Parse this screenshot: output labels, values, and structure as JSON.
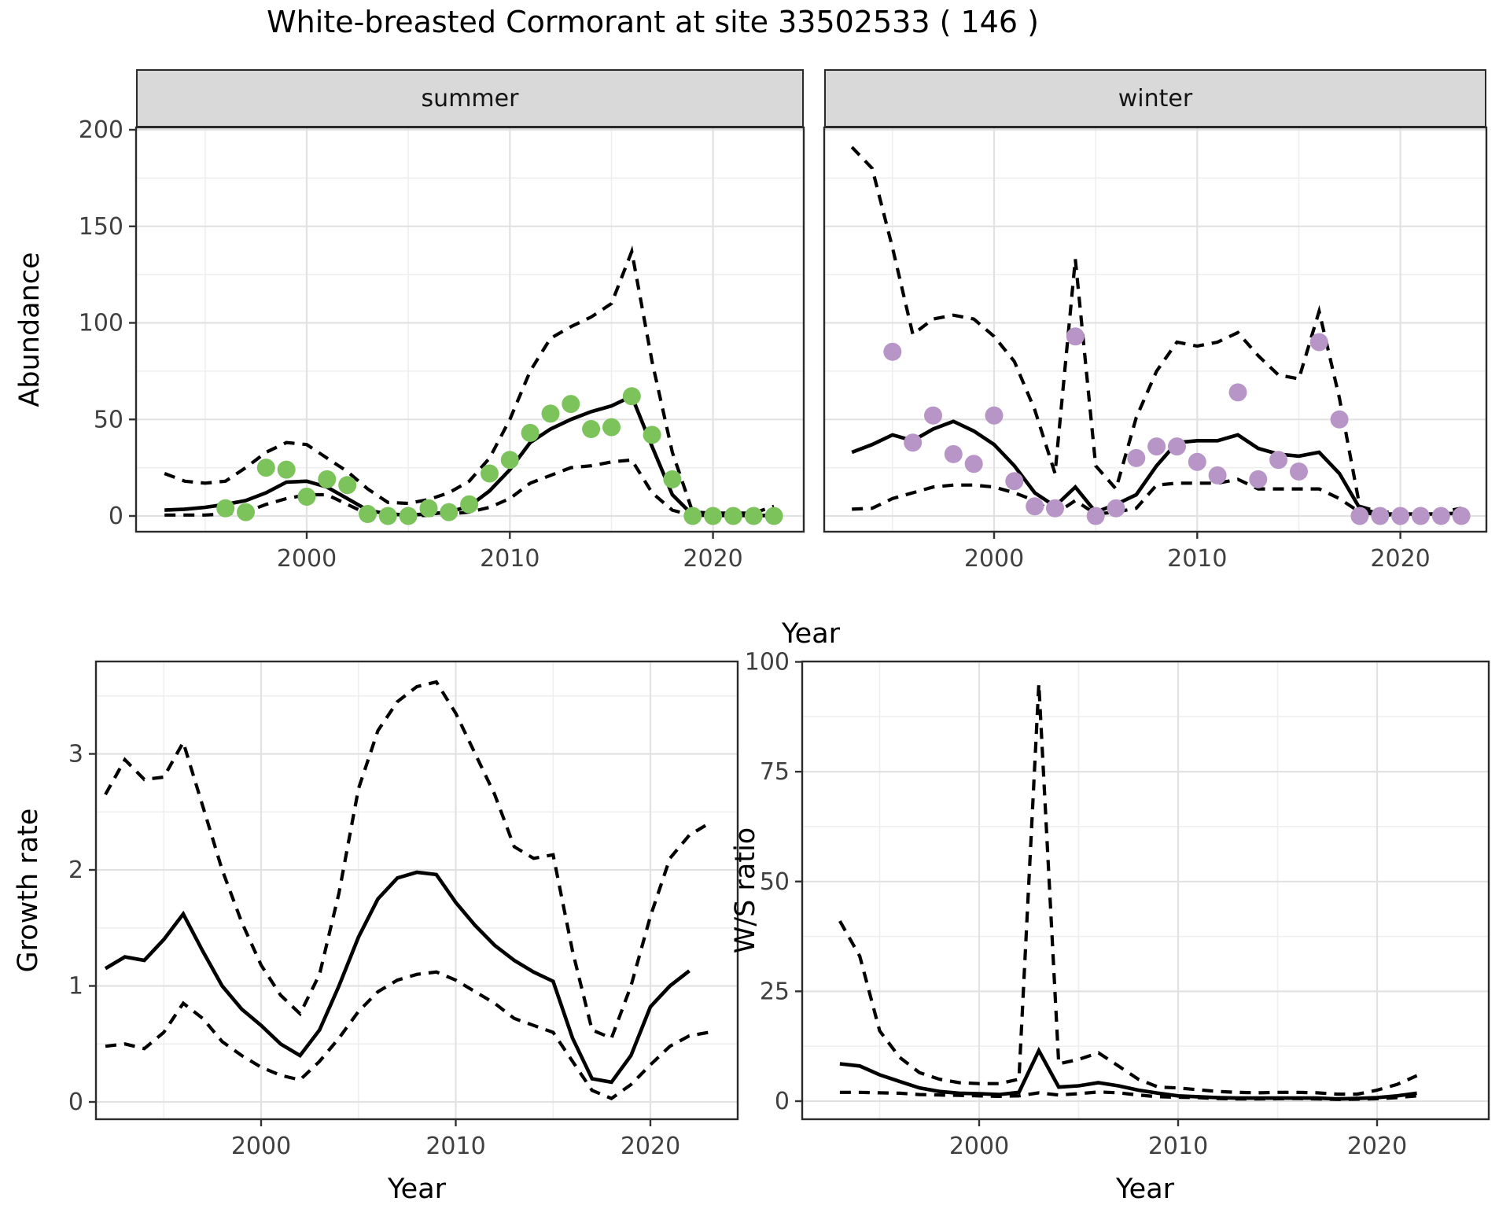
{
  "title": "White-breasted Cormorant at site 33502533 ( 146 )",
  "facets": [
    {
      "label": "summer"
    },
    {
      "label": "winter"
    }
  ],
  "axis_titles": {
    "abundance": "Abundance",
    "year": "Year",
    "growth_rate": "Growth rate",
    "ws_ratio": "W/S ratio"
  },
  "colors": {
    "summer_points": "#7CC35B",
    "winter_points": "#B795C7",
    "line": "#000000",
    "strip_bg": "#D9D9D9",
    "grid_major": "#E2E2E2",
    "grid_minor": "#EEEEEE",
    "panel_border": "#2B2B2B",
    "tick_text": "#404040"
  },
  "chart_data": [
    {
      "id": "abundance-summer",
      "type": "line",
      "facet": "summer",
      "xlabel": "Year",
      "ylabel": "Abundance",
      "ylim": [
        0,
        200
      ],
      "xticks": [
        2000,
        2010,
        2020
      ],
      "xticks_minor": [
        1995,
        2005,
        2015
      ],
      "yticks": [
        0,
        50,
        100,
        150,
        200
      ],
      "yticks_minor": [
        25,
        75,
        125,
        175
      ],
      "show_y_axis": true,
      "years": [
        1993,
        1994,
        1995,
        1996,
        1997,
        1998,
        1999,
        2000,
        2001,
        2002,
        2003,
        2004,
        2005,
        2006,
        2007,
        2008,
        2009,
        2010,
        2011,
        2012,
        2013,
        2014,
        2015,
        2016,
        2017,
        2018,
        2019,
        2020,
        2021,
        2022,
        2023
      ],
      "series": [
        {
          "name": "mean",
          "linetype": "solid",
          "values": [
            3,
            3.5,
            4.5,
            6,
            8,
            12,
            17.5,
            18,
            15,
            9,
            3,
            1,
            0.5,
            1,
            2,
            5,
            13,
            24,
            38,
            45,
            50,
            54,
            57,
            62,
            36,
            11,
            0.5,
            0.3,
            0.3,
            0.3,
            0.3
          ]
        },
        {
          "name": "upper_ci",
          "linetype": "dashed",
          "values": [
            22,
            18,
            17,
            18,
            25,
            33,
            38,
            37,
            30,
            23,
            14,
            7,
            6.5,
            8.5,
            12,
            18,
            30,
            50,
            75,
            92,
            98,
            103,
            110,
            137,
            80,
            33,
            2,
            1.5,
            1.5,
            1.5,
            5
          ]
        },
        {
          "name": "lower_ci",
          "linetype": "dashed",
          "values": [
            0.5,
            0.5,
            0.5,
            1,
            2,
            6,
            9,
            11,
            11,
            6,
            1,
            0.3,
            0.2,
            0.3,
            1,
            2,
            4.5,
            9,
            17,
            21,
            25,
            26,
            28,
            29,
            12,
            3,
            0.2,
            0.2,
            0.2,
            0.2,
            0.2
          ]
        }
      ],
      "points": {
        "color": "#7CC35B",
        "data": [
          [
            1996,
            4
          ],
          [
            1997,
            2
          ],
          [
            1998,
            25
          ],
          [
            1999,
            24
          ],
          [
            2000,
            10
          ],
          [
            2001,
            19
          ],
          [
            2002,
            16
          ],
          [
            2003,
            1
          ],
          [
            2004,
            0
          ],
          [
            2005,
            0
          ],
          [
            2006,
            4
          ],
          [
            2007,
            2
          ],
          [
            2008,
            6
          ],
          [
            2009,
            22
          ],
          [
            2010,
            29
          ],
          [
            2011,
            43
          ],
          [
            2012,
            53
          ],
          [
            2013,
            58
          ],
          [
            2014,
            45
          ],
          [
            2015,
            46
          ],
          [
            2016,
            62
          ],
          [
            2017,
            42
          ],
          [
            2018,
            19
          ],
          [
            2019,
            0
          ],
          [
            2020,
            0
          ],
          [
            2021,
            0
          ],
          [
            2022,
            0
          ],
          [
            2023,
            0
          ]
        ]
      }
    },
    {
      "id": "abundance-winter",
      "type": "line",
      "facet": "winter",
      "xlabel": "Year",
      "ylabel": "Abundance",
      "ylim": [
        0,
        200
      ],
      "xticks": [
        2000,
        2010,
        2020
      ],
      "xticks_minor": [
        1995,
        2005,
        2015
      ],
      "yticks": [
        0,
        50,
        100,
        150,
        200
      ],
      "yticks_minor": [
        25,
        75,
        125,
        175
      ],
      "show_y_axis": false,
      "years": [
        1993,
        1994,
        1995,
        1996,
        1997,
        1998,
        1999,
        2000,
        2001,
        2002,
        2003,
        2004,
        2005,
        2006,
        2007,
        2008,
        2009,
        2010,
        2011,
        2012,
        2013,
        2014,
        2015,
        2016,
        2017,
        2018,
        2019,
        2020,
        2021,
        2022,
        2023
      ],
      "series": [
        {
          "name": "mean",
          "linetype": "solid",
          "values": [
            33,
            37,
            42,
            39,
            45,
            49,
            44,
            37,
            26,
            12,
            5,
            15,
            2,
            6,
            11,
            26,
            38,
            39,
            39,
            42,
            35,
            32,
            31,
            33,
            22,
            4,
            1,
            1,
            1,
            1,
            1.5
          ]
        },
        {
          "name": "upper_ci",
          "linetype": "dashed",
          "values": [
            191,
            180,
            139,
            94,
            102,
            104,
            102,
            93,
            80,
            55,
            22,
            133,
            26,
            14,
            51,
            75,
            90,
            88,
            90,
            95,
            83,
            73,
            71,
            106,
            61,
            5,
            2,
            2,
            2,
            2,
            4
          ]
        },
        {
          "name": "lower_ci",
          "linetype": "dashed",
          "values": [
            3.5,
            4,
            9,
            12,
            15,
            16,
            16,
            15,
            12,
            8,
            1,
            8,
            1,
            2,
            4,
            16,
            17,
            17,
            17,
            19,
            14,
            14,
            14,
            14,
            9,
            2,
            0.5,
            0.5,
            0.5,
            0.5,
            2
          ]
        }
      ],
      "points": {
        "color": "#B795C7",
        "data": [
          [
            1995,
            85
          ],
          [
            1996,
            38
          ],
          [
            1997,
            52
          ],
          [
            1998,
            32
          ],
          [
            1999,
            27
          ],
          [
            2000,
            52
          ],
          [
            2001,
            18
          ],
          [
            2002,
            5
          ],
          [
            2003,
            4
          ],
          [
            2004,
            93
          ],
          [
            2005,
            0
          ],
          [
            2006,
            4
          ],
          [
            2007,
            30
          ],
          [
            2008,
            36
          ],
          [
            2009,
            36
          ],
          [
            2010,
            28
          ],
          [
            2011,
            21
          ],
          [
            2012,
            64
          ],
          [
            2013,
            19
          ],
          [
            2014,
            29
          ],
          [
            2015,
            23
          ],
          [
            2016,
            90
          ],
          [
            2017,
            50
          ],
          [
            2018,
            0
          ],
          [
            2019,
            0
          ],
          [
            2020,
            0
          ],
          [
            2021,
            0
          ],
          [
            2022,
            0
          ],
          [
            2023,
            0
          ]
        ]
      }
    },
    {
      "id": "growth-rate",
      "type": "line",
      "xlabel": "Year",
      "ylabel": "Growth rate",
      "ylim": [
        0,
        3.6
      ],
      "xticks": [
        2000,
        2010,
        2020
      ],
      "xticks_minor": [
        1995,
        2005,
        2015
      ],
      "yticks": [
        0,
        1,
        2,
        3
      ],
      "yticks_minor": [
        0.5,
        1.5,
        2.5,
        3.5
      ],
      "show_y_axis": true,
      "years": [
        1992,
        1993,
        1994,
        1995,
        1996,
        1997,
        1998,
        1999,
        2000,
        2001,
        2002,
        2003,
        2004,
        2005,
        2006,
        2007,
        2008,
        2009,
        2010,
        2011,
        2012,
        2013,
        2014,
        2015,
        2016,
        2017,
        2018,
        2019,
        2020,
        2021,
        2022,
        2023
      ],
      "series": [
        {
          "name": "mean",
          "linetype": "solid",
          "values": [
            1.15,
            1.25,
            1.22,
            1.4,
            1.62,
            1.3,
            1.0,
            0.8,
            0.66,
            0.5,
            0.4,
            0.62,
            1.0,
            1.42,
            1.75,
            1.93,
            1.98,
            1.96,
            1.72,
            1.52,
            1.35,
            1.22,
            1.12,
            1.04,
            0.55,
            0.2,
            0.17,
            0.4,
            0.82,
            1.0,
            1.13,
            null
          ]
        },
        {
          "name": "upper_ci",
          "linetype": "dashed",
          "values": [
            2.65,
            2.95,
            2.78,
            2.8,
            3.1,
            2.55,
            2.0,
            1.55,
            1.18,
            0.92,
            0.76,
            1.1,
            1.8,
            2.7,
            3.2,
            3.45,
            3.58,
            3.62,
            3.35,
            3.0,
            2.65,
            2.2,
            2.1,
            2.13,
            1.3,
            0.62,
            0.55,
            1.0,
            1.6,
            2.1,
            2.3,
            2.4
          ]
        },
        {
          "name": "lower_ci",
          "linetype": "dashed",
          "values": [
            0.48,
            0.5,
            0.46,
            0.6,
            0.85,
            0.72,
            0.52,
            0.4,
            0.3,
            0.23,
            0.19,
            0.35,
            0.55,
            0.78,
            0.95,
            1.05,
            1.1,
            1.12,
            1.05,
            0.95,
            0.85,
            0.72,
            0.66,
            0.6,
            0.35,
            0.1,
            0.03,
            0.15,
            0.32,
            0.48,
            0.57,
            0.6
          ]
        }
      ],
      "points": null
    },
    {
      "id": "ws-ratio",
      "type": "line",
      "xlabel": "Year",
      "ylabel": "W/S ratio",
      "ylim": [
        0,
        100
      ],
      "xticks": [
        2000,
        2010,
        2020
      ],
      "xticks_minor": [
        1995,
        2005,
        2015
      ],
      "yticks": [
        0,
        25,
        50,
        75,
        100
      ],
      "yticks_minor": [
        12.5,
        37.5,
        62.5,
        87.5
      ],
      "show_y_axis": true,
      "years": [
        1993,
        1994,
        1995,
        1996,
        1997,
        1998,
        1999,
        2000,
        2001,
        2002,
        2003,
        2004,
        2005,
        2006,
        2007,
        2008,
        2009,
        2010,
        2011,
        2012,
        2013,
        2014,
        2015,
        2016,
        2017,
        2018,
        2019,
        2020,
        2021,
        2022
      ],
      "series": [
        {
          "name": "mean",
          "linetype": "solid",
          "values": [
            8.5,
            8,
            6,
            4.5,
            3,
            2.2,
            1.8,
            1.7,
            1.5,
            2,
            11.5,
            3.2,
            3.5,
            4.2,
            3.5,
            2.5,
            1.8,
            1.2,
            1,
            0.8,
            0.7,
            0.7,
            0.7,
            0.7,
            0.7,
            0.5,
            0.6,
            0.8,
            1.2,
            1.8
          ]
        },
        {
          "name": "upper_ci",
          "linetype": "dashed",
          "values": [
            41,
            33,
            16,
            10,
            6.5,
            5,
            4.2,
            4,
            4,
            5,
            95,
            8.5,
            9.5,
            11,
            8,
            5,
            3.2,
            3,
            2.6,
            2.2,
            2,
            1.9,
            2,
            2,
            1.9,
            1.6,
            1.6,
            2.5,
            3.8,
            5.8
          ]
        },
        {
          "name": "lower_ci",
          "linetype": "dashed",
          "values": [
            2,
            2,
            1.9,
            1.8,
            1.5,
            1.4,
            1.3,
            1.2,
            1.1,
            1.2,
            1.9,
            1.4,
            1.7,
            2.1,
            1.9,
            1.4,
            1,
            0.9,
            0.8,
            0.6,
            0.5,
            0.5,
            0.55,
            0.6,
            0.5,
            0.4,
            0.45,
            0.55,
            0.8,
            1.2
          ]
        }
      ],
      "points": null
    }
  ]
}
